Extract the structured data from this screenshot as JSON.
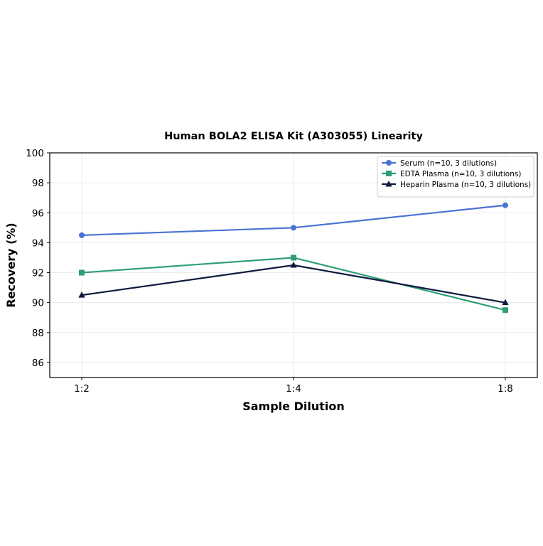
{
  "chart_data": {
    "type": "line",
    "title": "Human BOLA2 ELISA Kit (A303055) Linearity",
    "xlabel": "Sample Dilution",
    "ylabel": "Recovery (%)",
    "categories": [
      "1:2",
      "1:4",
      "1:8"
    ],
    "ylim": [
      85,
      100
    ],
    "yticks": [
      86,
      88,
      90,
      92,
      94,
      96,
      98,
      100
    ],
    "grid": true,
    "legend_position": "top-right",
    "series": [
      {
        "name": "Serum (n=10, 3 dilutions)",
        "values": [
          94.5,
          95.0,
          96.5
        ],
        "color": "#4a72d4",
        "marker": "circle"
      },
      {
        "name": "EDTA Plasma (n=10, 3 dilutions)",
        "values": [
          92.0,
          93.0,
          89.5
        ],
        "color": "#2e9e78",
        "marker": "square"
      },
      {
        "name": "Heparin Plasma (n=10, 3 dilutions)",
        "values": [
          90.5,
          92.5,
          90.0
        ],
        "color": "#0f1a3c",
        "marker": "triangle"
      }
    ]
  }
}
